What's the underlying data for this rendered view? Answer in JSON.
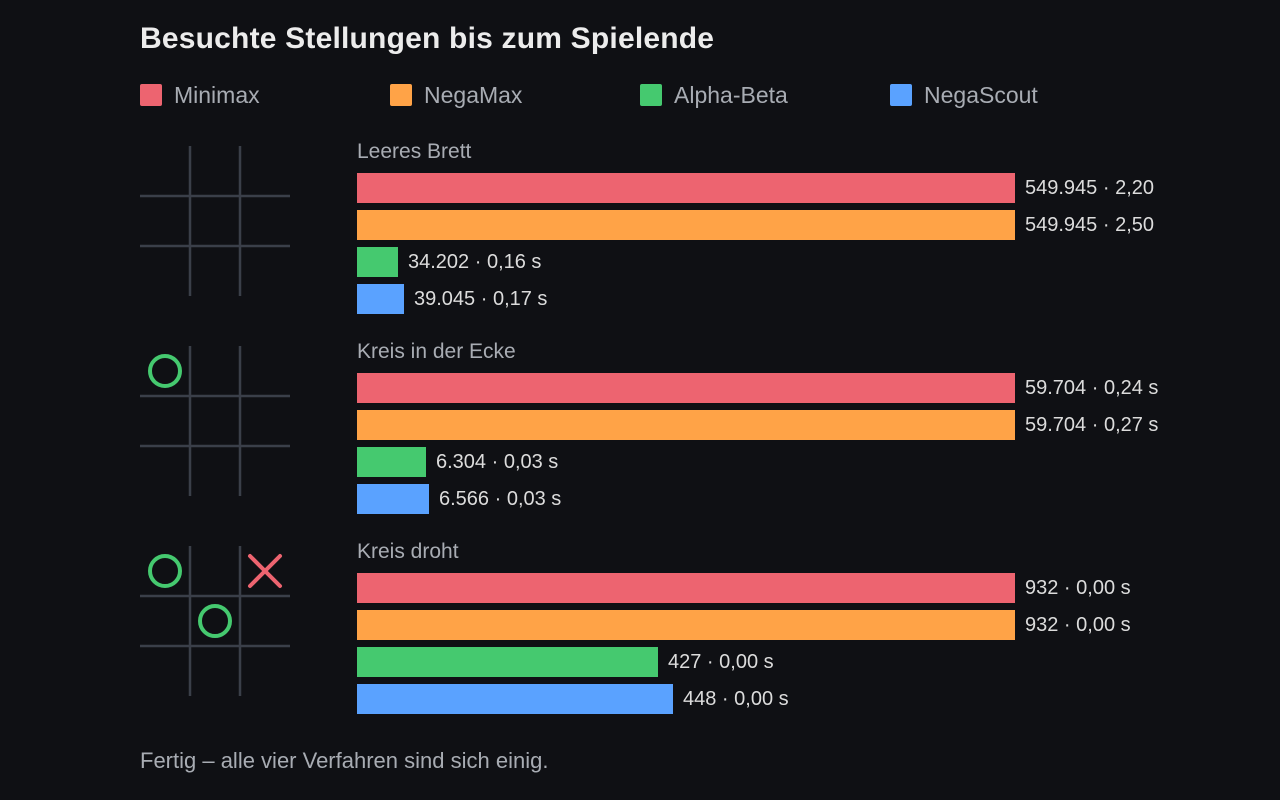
{
  "title": "Besuchte Stellungen bis zum Spielende",
  "footer": "Fertig – alle vier Verfahren sind sich einig.",
  "colors": {
    "background": "#0f1014",
    "grid": "#3a3f49",
    "circle": "#45c96f",
    "cross": "#ed6470"
  },
  "legend": [
    {
      "name": "Minimax",
      "color": "#ed6470"
    },
    {
      "name": "NegaMax",
      "color": "#ffa347"
    },
    {
      "name": "Alpha-Beta",
      "color": "#45c96f"
    },
    {
      "name": "NegaScout",
      "color": "#5aa2ff"
    }
  ],
  "chart_data": {
    "type": "bar",
    "orientation": "horizontal",
    "title": "Besuchte Stellungen bis zum Spielende",
    "scale": "relative to largest value per scenario",
    "series_names": [
      "Minimax",
      "NegaMax",
      "Alpha-Beta",
      "NegaScout"
    ],
    "scenarios": [
      {
        "label": "Leeres Brett",
        "board": [
          [
            "",
            "",
            ""
          ],
          [
            "",
            "",
            ""
          ],
          [
            "",
            "",
            ""
          ]
        ],
        "values": [
          549945,
          549945,
          34202,
          39045
        ],
        "labels": [
          "549.945 · 2,20",
          "549.945 · 2,50",
          "34.202 · 0,16 s",
          "39.045 · 0,17 s"
        ]
      },
      {
        "label": "Kreis in der Ecke",
        "board": [
          [
            "O",
            "",
            ""
          ],
          [
            "",
            "",
            ""
          ],
          [
            "",
            "",
            ""
          ]
        ],
        "values": [
          59704,
          59704,
          6304,
          6566
        ],
        "labels": [
          "59.704 · 0,24 s",
          "59.704 · 0,27 s",
          "6.304 · 0,03 s",
          "6.566 · 0,03 s"
        ]
      },
      {
        "label": "Kreis droht",
        "board": [
          [
            "O",
            "",
            "X"
          ],
          [
            "",
            "O",
            ""
          ],
          [
            "",
            "",
            ""
          ]
        ],
        "values": [
          932,
          932,
          427,
          448
        ],
        "labels": [
          "932 · 0,00 s",
          "932 · 0,00 s",
          "427 · 0,00 s",
          "448 · 0,00 s"
        ]
      }
    ]
  }
}
